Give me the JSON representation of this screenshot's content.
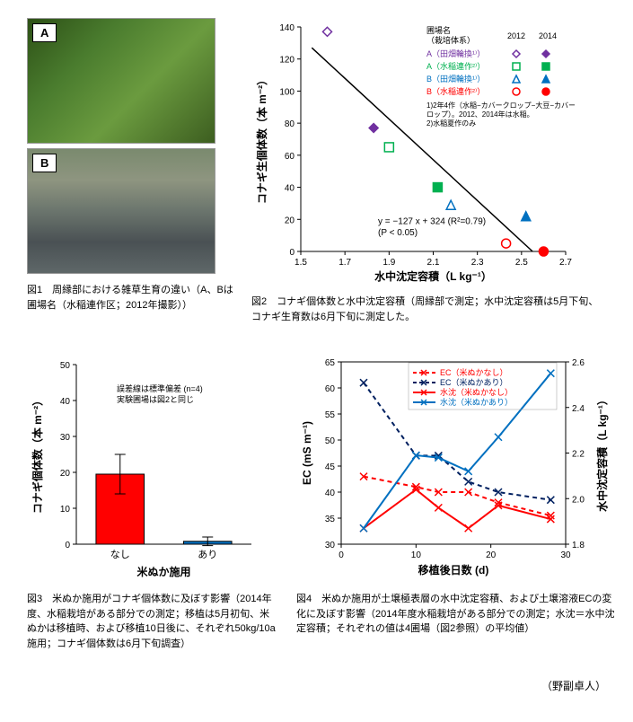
{
  "fig1": {
    "labels": [
      "A",
      "B"
    ],
    "caption": "図1　周縁部における雑草生育の違い（A、Bは圃場名（水稲連作区；2012年撮影））"
  },
  "fig2": {
    "caption": "図2　コナギ個体数と水中沈定容積（周縁部で測定；水中沈定容積は5月下旬、コナギ生育数は6月下旬に測定した。",
    "xlabel": "水中沈定容積（L kg⁻¹）",
    "ylabel": "コナギ生個体数（本 m⁻²）",
    "xlim": [
      1.5,
      2.7
    ],
    "xtick_step": 0.2,
    "ylim": [
      0,
      140
    ],
    "ytick_step": 20,
    "regression": "y = −127 x + 324 (R²=0.79)",
    "pvalue": "(P < 0.05)",
    "regline_x1": 1.55,
    "regline_y1": 127,
    "regline_x2": 2.55,
    "regline_y2": 0,
    "legend_title1": "圃場名",
    "legend_title2": "（栽培体系）",
    "legend_years": [
      "2012",
      "2014"
    ],
    "series": [
      {
        "label": "A（田畑輪換¹⁾）",
        "color": "#7030a0"
      },
      {
        "label": "A（水稲連作²⁾）",
        "color": "#00b050"
      },
      {
        "label": "B（田畑輪換¹⁾）",
        "color": "#0070c0"
      },
      {
        "label": "B（水稲連作²⁾）",
        "color": "#ff0000"
      }
    ],
    "note1": "1)2年4作（水稲−カバークロップ−大豆−カバークロップ）。2012、2014年は水稲。",
    "note2": "2)水稲夏作のみ",
    "points": [
      {
        "x": 1.62,
        "y": 137,
        "series": 0,
        "filled": false,
        "shape": "diamond"
      },
      {
        "x": 1.83,
        "y": 77,
        "series": 0,
        "filled": true,
        "shape": "diamond"
      },
      {
        "x": 1.9,
        "y": 65,
        "series": 1,
        "filled": false,
        "shape": "square"
      },
      {
        "x": 2.12,
        "y": 40,
        "series": 1,
        "filled": true,
        "shape": "square"
      },
      {
        "x": 2.18,
        "y": 29,
        "series": 2,
        "filled": false,
        "shape": "triangle"
      },
      {
        "x": 2.52,
        "y": 22,
        "series": 2,
        "filled": true,
        "shape": "triangle"
      },
      {
        "x": 2.43,
        "y": 5,
        "series": 3,
        "filled": false,
        "shape": "circle"
      },
      {
        "x": 2.6,
        "y": 0,
        "series": 3,
        "filled": true,
        "shape": "circle"
      }
    ]
  },
  "fig3": {
    "caption": "図3　米ぬか施用がコナギ個体数に及ぼす影響（2014年度、水稲栽培がある部分での測定；移植は5月初旬、米ぬかは移植時、および移植10日後に、それぞれ50kg/10a施用；コナギ個体数は6月下旬調査）",
    "xlabel": "米ぬか施用",
    "ylabel": "コナギ個体数（本 m⁻²）",
    "note1": "誤差線は標準偏差 (n=4)",
    "note2": "実験圃場は図2と同じ",
    "ylim": [
      0,
      50
    ],
    "ytick_step": 10,
    "categories": [
      "なし",
      "あり"
    ],
    "values": [
      19.5,
      0.8
    ],
    "errors": [
      5.5,
      1.2
    ],
    "colors": [
      "#ff0000",
      "#0070c0"
    ],
    "bar_width": 0.55
  },
  "fig4": {
    "caption": "図4　米ぬか施用が土壌極表層の水中沈定容積、および土壌溶液ECの変化に及ぼす影響（2014年度水稲栽培がある部分での測定；水沈＝水中沈定容積；それぞれの値は4圃場（図2参照）の平均値）",
    "xlabel": "移植後日数 (d)",
    "ylabel1": "EC (mS m⁻¹)",
    "ylabel2": "水中沈定容積（L kg⁻¹）",
    "xlim": [
      0,
      30
    ],
    "xtick_step": 10,
    "ylim1": [
      30,
      65
    ],
    "ytick1_step": 5,
    "ylim2": [
      1.8,
      2.6
    ],
    "ytick2_step": 0.2,
    "legend": [
      {
        "label": "EC（米ぬかなし）",
        "color": "#ff0000",
        "dash": true,
        "marker": "x"
      },
      {
        "label": "EC（米ぬかあり）",
        "color": "#002060",
        "dash": true,
        "marker": "x"
      },
      {
        "label": "水沈（米ぬかなし）",
        "color": "#ff0000",
        "dash": false,
        "marker": "x"
      },
      {
        "label": "水沈（米ぬかあり）",
        "color": "#0070c0",
        "dash": false,
        "marker": "x"
      }
    ],
    "data": {
      "x": [
        3,
        10,
        13,
        17,
        21,
        28
      ],
      "ec_nashi": [
        43,
        41,
        40,
        40,
        38,
        35.5
      ],
      "ec_ari": [
        61,
        47,
        47,
        42,
        40,
        38.5
      ],
      "sv_nashi": [
        1.87,
        2.04,
        1.96,
        1.87,
        1.97,
        1.91
      ],
      "sv_ari": [
        1.87,
        2.19,
        2.18,
        2.12,
        2.27,
        2.55
      ]
    }
  },
  "author": "（野副卓人）"
}
